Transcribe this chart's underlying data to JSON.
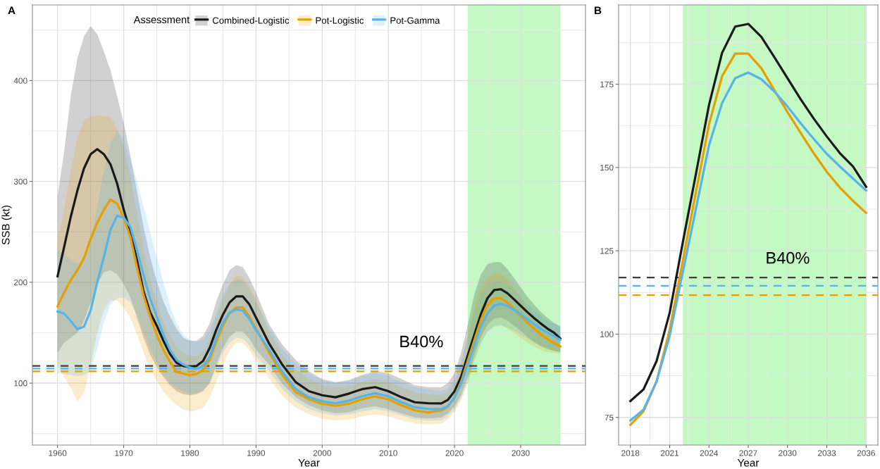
{
  "chart_data": [
    {
      "type": "line",
      "title": "A",
      "xlabel": "Year",
      "ylabel": "SSB (kt)",
      "legend_title": "Assessment",
      "legend": "top",
      "grid": true,
      "xlim": [
        1956.2,
        2039.8
      ],
      "ylim": [
        38.6,
        475
      ],
      "xticks": [
        1960,
        {
          "value": 1965,
          "label": null
        },
        1970,
        {
          "value": 1975,
          "label": null
        },
        1980,
        {
          "value": 1985,
          "label": null
        },
        1990,
        {
          "value": 1995,
          "label": null
        },
        2000,
        {
          "value": 2005,
          "label": null
        },
        2010,
        {
          "value": 2015,
          "label": null
        },
        2020,
        {
          "value": 2025,
          "label": null
        },
        2030,
        {
          "value": 2035,
          "label": null
        }
      ],
      "yticks": [
        {
          "value": 50,
          "label": null
        },
        100,
        {
          "value": 150,
          "label": null
        },
        200,
        {
          "value": 250,
          "label": null
        },
        300,
        {
          "value": 350,
          "label": null
        },
        400,
        {
          "value": 450,
          "label": null
        }
      ],
      "x": [
        1960,
        1961,
        1962,
        1963,
        1964,
        1965,
        1966,
        1967,
        1968,
        1969,
        1970,
        1971,
        1972,
        1973,
        1974,
        1975,
        1976,
        1977,
        1978,
        1979,
        1980,
        1981,
        1982,
        1983,
        1984,
        1985,
        1986,
        1987,
        1988,
        1989,
        1990,
        1992,
        1994,
        1996,
        1998,
        2000,
        2002,
        2004,
        2006,
        2008,
        2010,
        2012,
        2014,
        2016,
        2018,
        2019,
        2020,
        2021,
        2022,
        2023,
        2024,
        2025,
        2026,
        2027,
        2028,
        2029,
        2030,
        2031,
        2032,
        2033,
        2034,
        2035,
        2036
      ],
      "series": [
        {
          "name": "Combined-Logistic",
          "color": "#1a1a1a",
          "values": [
            206,
            235,
            265,
            291,
            313,
            327,
            332,
            327,
            317,
            298,
            272,
            250,
            222,
            191,
            170,
            157,
            142,
            129,
            120,
            117,
            116,
            117,
            122,
            135,
            153,
            168,
            180,
            186,
            186,
            178,
            165,
            139,
            118,
            101,
            92,
            88,
            86,
            89.5,
            94,
            96,
            92,
            86,
            81,
            80,
            79.9,
            83.4,
            91.9,
            106.4,
            127.5,
            148,
            168.7,
            184.4,
            192.3,
            193.1,
            189.2,
            183.1,
            176.8,
            170.5,
            164.7,
            159.3,
            154.3,
            150.3,
            144.2
          ],
          "lower": [
            130,
            140,
            145,
            150,
            162,
            180,
            198,
            210,
            212,
            208,
            198,
            185,
            165,
            145,
            128,
            116,
            106,
            98,
            92,
            89,
            88,
            89,
            92,
            100,
            118,
            135,
            146,
            151,
            151,
            144,
            133,
            118,
            99,
            86,
            78,
            73,
            70,
            71,
            75,
            77,
            74,
            70,
            66,
            65,
            66,
            70,
            77,
            88,
            106,
            128,
            146,
            158,
            164,
            165,
            162,
            157,
            152,
            146,
            141,
            137,
            134,
            132,
            131
          ],
          "upper": [
            285,
            330,
            385,
            422,
            444,
            454,
            446,
            429,
            410,
            385,
            358,
            326,
            290,
            255,
            225,
            201,
            181,
            166,
            154,
            145,
            142,
            142,
            147,
            159,
            181,
            198,
            212,
            217,
            215,
            204,
            190,
            158,
            138,
            123,
            112,
            104,
            101,
            103,
            108,
            112,
            110,
            104,
            98,
            96,
            96,
            100,
            110,
            130,
            158,
            188,
            208,
            218,
            220,
            220,
            213,
            204,
            195,
            186,
            178,
            171,
            165,
            160,
            156
          ]
        },
        {
          "name": "Pot-Logistic",
          "color": "#e69f00",
          "values": [
            176,
            190,
            202,
            212,
            224,
            243,
            259,
            272,
            282,
            278,
            264,
            245,
            215,
            187,
            166,
            148,
            133,
            121,
            111,
            109.5,
            108,
            109,
            113,
            123,
            141,
            157,
            169,
            175,
            175,
            166,
            154,
            130,
            108,
            91,
            84,
            79.5,
            77.5,
            79.5,
            84,
            87,
            84,
            78,
            73,
            71,
            72.8,
            76.8,
            85.8,
            101.3,
            122,
            142.5,
            162.9,
            177.4,
            184.2,
            184.2,
            179.8,
            173.2,
            166.6,
            160.4,
            154.3,
            148.7,
            144,
            140,
            136.4
          ],
          "lower": [
            118,
            106,
            95,
            82,
            90,
            118,
            150,
            172,
            182,
            182,
            175,
            165,
            148,
            130,
            114,
            102,
            92,
            84,
            78,
            74,
            72,
            73,
            76,
            85,
            102,
            118,
            132,
            140,
            140,
            133,
            122,
            105,
            87,
            76,
            69,
            65,
            63,
            64,
            67,
            69,
            67,
            63,
            60,
            59,
            60,
            64,
            71,
            83,
            100,
            122,
            140,
            151,
            157,
            158,
            154,
            150,
            145,
            140,
            136,
            133,
            131,
            130,
            129
          ],
          "upper": [
            241,
            273,
            310,
            343,
            361,
            364,
            365,
            365,
            364,
            352,
            335,
            305,
            268,
            233,
            203,
            180,
            160,
            146,
            136,
            130,
            127,
            127,
            131,
            143,
            165,
            183,
            198,
            207,
            205,
            196,
            183,
            150,
            128,
            113,
            104,
            98,
            96,
            97,
            101,
            104,
            101,
            96,
            91,
            89,
            88,
            91,
            100,
            120,
            148,
            176,
            195,
            205,
            209,
            209,
            203,
            194,
            185,
            176,
            168,
            161,
            155,
            150,
            146
          ]
        },
        {
          "name": "Pot-Gamma",
          "color": "#56b4e9",
          "values": [
            171,
            169,
            161.5,
            153.5,
            156,
            172,
            200,
            225,
            252,
            266,
            264,
            255,
            232,
            207,
            184,
            166,
            148,
            133,
            123,
            118.5,
            115.5,
            114,
            117,
            126,
            145,
            160,
            170,
            173,
            172,
            163.5,
            152.5,
            133,
            111,
            94,
            86,
            82,
            80,
            82.5,
            87,
            90,
            87,
            81,
            76,
            74.5,
            74.1,
            77.3,
            85.8,
            99.5,
            118.5,
            137.5,
            156.6,
            169.3,
            176.8,
            178.5,
            176.5,
            172.8,
            168.3,
            163.3,
            158.6,
            154.1,
            150.3,
            146.7,
            143.1
          ],
          "lower": [
            110,
            109,
            108,
            107,
            108,
            112,
            135,
            160,
            178,
            184,
            185,
            180,
            168,
            150,
            134,
            121,
            109,
            100,
            95,
            92,
            90,
            90,
            93,
            100,
            115,
            130,
            140,
            145,
            144,
            137,
            127,
            112,
            94,
            82,
            74,
            70,
            68,
            69,
            72,
            74,
            72,
            68,
            64,
            63,
            63,
            67,
            74,
            85,
            101,
            122,
            140,
            151,
            156,
            157,
            155,
            152,
            148,
            144,
            140,
            137,
            134,
            132,
            130
          ],
          "upper": [
            232,
            228,
            222,
            218,
            222,
            240,
            275,
            310,
            338,
            350,
            342,
            322,
            300,
            275,
            250,
            225,
            200,
            177,
            159,
            148,
            143,
            141,
            143,
            152,
            170,
            187,
            198,
            203,
            202,
            193,
            180,
            155,
            134,
            119,
            110,
            103,
            100,
            102,
            107,
            110,
            107,
            101,
            96,
            94,
            92,
            95,
            104,
            121,
            145,
            170,
            188,
            197,
            201,
            201,
            198,
            192,
            185,
            178,
            172,
            167,
            162,
            159,
            157
          ]
        }
      ],
      "ref_lines": [
        {
          "axis": "y",
          "value": 117.0,
          "color": "#3d3d3d",
          "line_style": "dashed"
        },
        {
          "axis": "y",
          "value": 114.5,
          "color": "#56b4e9",
          "line_style": "dashed"
        },
        {
          "axis": "y",
          "value": 111.7,
          "color": "#e69f00",
          "line_style": "dashed"
        }
      ],
      "bands": [
        {
          "axis": "x",
          "from": 2022,
          "to": 2036,
          "color": "#c5f9c4"
        }
      ],
      "annotations": [
        "B40%"
      ]
    },
    {
      "type": "line",
      "title": "B",
      "xlabel": "Year",
      "grid": true,
      "xlim": [
        2017.1,
        2036.9
      ],
      "ylim": [
        66.7,
        198.8
      ],
      "xticks": [
        2018,
        {
          "value": 2019.5,
          "label": null
        },
        2021,
        {
          "value": 2022.5,
          "label": null
        },
        2024,
        {
          "value": 2025.5,
          "label": null
        },
        2027,
        {
          "value": 2028.5,
          "label": null
        },
        2030,
        {
          "value": 2031.5,
          "label": null
        },
        2033,
        {
          "value": 2034.5,
          "label": null
        },
        2036
      ],
      "yticks": [
        75,
        {
          "value": 87.5,
          "label": null
        },
        100,
        {
          "value": 112.5,
          "label": null
        },
        125,
        {
          "value": 137.5,
          "label": null
        },
        150,
        {
          "value": 162.5,
          "label": null
        },
        175,
        {
          "value": 187.5,
          "label": null
        }
      ],
      "x": [
        2018,
        2019,
        2020,
        2021,
        2022,
        2023,
        2024,
        2025,
        2026,
        2027,
        2028,
        2029,
        2030,
        2031,
        2032,
        2033,
        2034,
        2035,
        2036
      ],
      "series": [
        {
          "color": "#1a1a1a",
          "values": [
            79.9,
            83.4,
            91.9,
            106.4,
            127.5,
            148,
            168.7,
            184.4,
            192.3,
            193.1,
            189.2,
            183.1,
            176.8,
            170.5,
            164.7,
            159.3,
            154.3,
            150.3,
            144.2
          ]
        },
        {
          "color": "#e69f00",
          "values": [
            72.8,
            76.8,
            85.8,
            101.3,
            122,
            142.5,
            162.9,
            177.4,
            184.2,
            184.2,
            179.8,
            173.2,
            166.6,
            160.4,
            154.3,
            148.7,
            144,
            140,
            136.4
          ]
        },
        {
          "color": "#56b4e9",
          "values": [
            74.1,
            77.3,
            85.8,
            99.5,
            118.5,
            137.5,
            156.6,
            169.3,
            176.8,
            178.5,
            176.5,
            172.8,
            168.3,
            163.3,
            158.6,
            154.1,
            150.3,
            146.7,
            143.1
          ]
        }
      ],
      "ref_lines": [
        {
          "axis": "y",
          "value": 117.0,
          "color": "#3d3d3d",
          "line_style": "dashed"
        },
        {
          "axis": "y",
          "value": 114.5,
          "color": "#56b4e9",
          "line_style": "dashed"
        },
        {
          "axis": "y",
          "value": 111.7,
          "color": "#e69f00",
          "line_style": "dashed"
        }
      ],
      "bands": [
        {
          "axis": "x",
          "from": 2022,
          "to": 2036,
          "color": "#c5f9c4"
        }
      ],
      "annotations": [
        "B40%"
      ]
    }
  ]
}
